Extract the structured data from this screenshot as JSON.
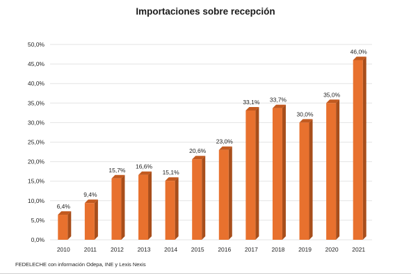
{
  "chart_data": {
    "type": "bar",
    "title": "Importaciones sobre recepción",
    "categories": [
      "2010",
      "2011",
      "2012",
      "2013",
      "2014",
      "2015",
      "2016",
      "2017",
      "2018",
      "2019",
      "2020",
      "2021"
    ],
    "values": [
      6.4,
      9.4,
      15.7,
      16.6,
      15.1,
      20.6,
      23.0,
      33.1,
      33.7,
      30.0,
      35.0,
      46.0
    ],
    "data_labels": [
      "6,4%",
      "9,4%",
      "15,7%",
      "16,6%",
      "15,1%",
      "20,6%",
      "23,0%",
      "33,1%",
      "33,7%",
      "30,0%",
      "35,0%",
      "46,0%"
    ],
    "ylim": [
      0,
      50
    ],
    "yticks": [
      0,
      5,
      10,
      15,
      20,
      25,
      30,
      35,
      40,
      45,
      50
    ],
    "ytick_labels": [
      "0,0%",
      "5,0%",
      "10,0%",
      "15,0%",
      "20,0%",
      "25,0%",
      "30,0%",
      "35,0%",
      "40,0%",
      "45,0%",
      "50,0%"
    ],
    "xlabel": "",
    "ylabel": "",
    "grid": true,
    "legend": "none",
    "colors": {
      "bar_front": "#E8712E",
      "bar_side": "#A84E1B",
      "bar_top": "#C25A20",
      "grid": "#E3E3E3"
    }
  },
  "source": "FEDELECHE con información Odepa, INE y Lexis Nexis"
}
